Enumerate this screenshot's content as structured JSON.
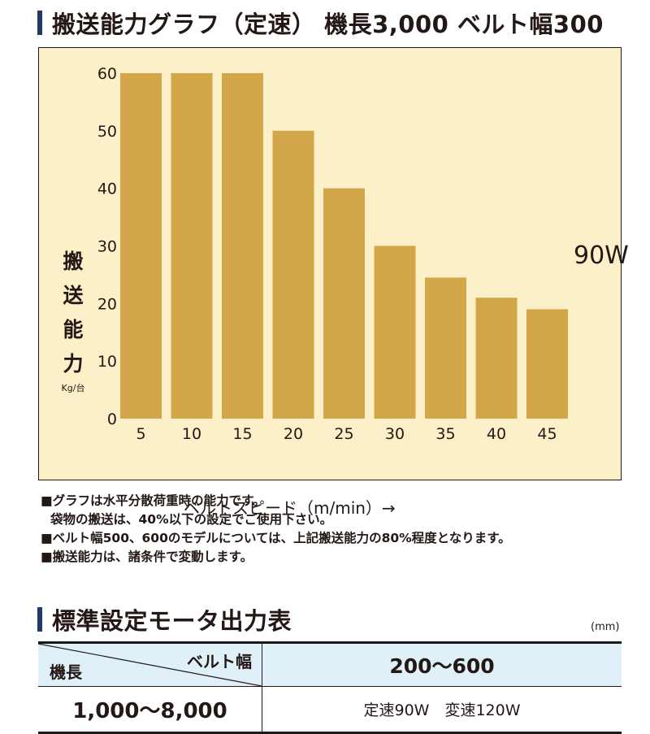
{
  "chart_section": {
    "heading": "搬送能力グラフ（定速） 機長3,000 ベルト幅300"
  },
  "chart_data": {
    "type": "bar",
    "categories": [
      "5",
      "10",
      "15",
      "20",
      "25",
      "30",
      "35",
      "40",
      "45"
    ],
    "values": [
      60,
      60,
      60,
      50,
      40,
      30,
      24.5,
      21,
      19
    ],
    "ylim": [
      0,
      60
    ],
    "yticks": [
      0,
      10,
      20,
      30,
      40,
      50,
      60
    ],
    "ylabel_chars": [
      "搬",
      "送",
      "能",
      "力"
    ],
    "ylabel_unit": "Kg/台",
    "xlabel": "ベルトスピード（m/min）→",
    "annotation": "90W",
    "grid": false,
    "bar_color": "#d4a64a",
    "background_color": "#fcf0c8"
  },
  "notes": [
    "■グラフは水平分散荷重時の能力です。",
    "袋物の搬送は、40%以下の設定でご使用下さい。",
    "■ベルト幅500、600のモデルについては、上記搬送能力の80%程度となります。",
    "■搬送能力は、諸条件で変動します。"
  ],
  "table_section": {
    "heading": "標準設定モータ出力表",
    "unit": "(mm)"
  },
  "table": {
    "header_belt": "ベルト幅",
    "header_length": "機長",
    "header_range": "200～600",
    "row_length": "1,000～8,000",
    "row_motor": "定速90W　変速120W"
  },
  "colors": {
    "accent_bar": "#1f3b66",
    "table_header_bg": "#dff0f8"
  }
}
